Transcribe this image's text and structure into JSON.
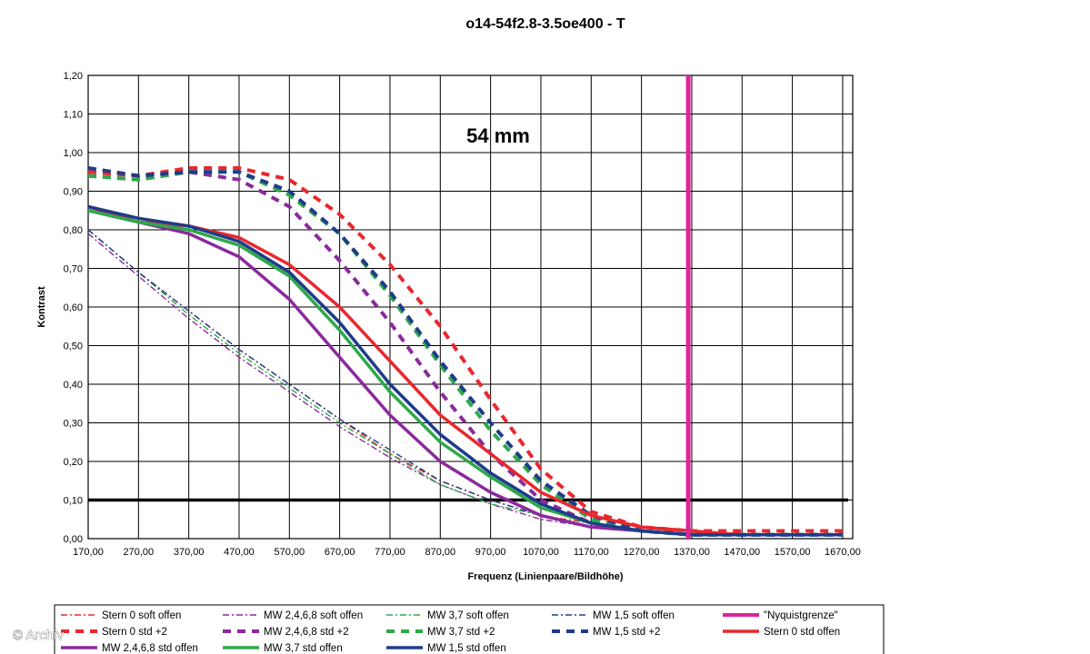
{
  "chart_data": {
    "type": "line",
    "title": "o14-54f2.8-3.5oe400 - T",
    "annotation": "54 mm",
    "xlabel": "Frequenz (Linienpaare/Bildhöhe)",
    "ylabel": "Kontrast",
    "xlim": [
      170,
      1690
    ],
    "ylim": [
      0,
      1.2
    ],
    "x_ticks": [
      "170,00",
      "270,00",
      "370,00",
      "470,00",
      "570,00",
      "670,00",
      "770,00",
      "870,00",
      "970,00",
      "1070,00",
      "1170,00",
      "1270,00",
      "1370,00",
      "1470,00",
      "1570,00",
      "1670,00"
    ],
    "y_ticks": [
      "0,00",
      "0,10",
      "0,20",
      "0,30",
      "0,40",
      "0,50",
      "0,60",
      "0,70",
      "0,80",
      "0,90",
      "1,00",
      "1,10",
      "1,20"
    ],
    "grid": true,
    "reference_lines": [
      {
        "orientation": "horizontal",
        "value": 0.1,
        "color": "#000000"
      }
    ],
    "legend_position": "bottom",
    "series": [
      {
        "name": "Stern 0 soft offen",
        "color": "#e8282e",
        "style": "dashdot",
        "x": [
          170,
          270,
          370,
          470,
          570,
          670,
          770,
          870,
          970,
          1070,
          1170,
          1270,
          1370,
          1470,
          1570,
          1670
        ],
        "y": [
          0.8,
          0.69,
          0.59,
          0.49,
          0.4,
          0.31,
          0.22,
          0.15,
          0.1,
          0.06,
          0.04,
          0.02,
          0.02,
          0.01,
          0.01,
          0.01
        ]
      },
      {
        "name": "MW 2,4,6,8 soft offen",
        "color": "#8b2a9c",
        "style": "dashdot",
        "x": [
          170,
          270,
          370,
          470,
          570,
          670,
          770,
          870,
          970,
          1070,
          1170,
          1270,
          1370,
          1470,
          1570,
          1670
        ],
        "y": [
          0.79,
          0.68,
          0.57,
          0.47,
          0.38,
          0.29,
          0.21,
          0.14,
          0.09,
          0.05,
          0.03,
          0.02,
          0.01,
          0.01,
          0.01,
          0.01
        ]
      },
      {
        "name": "MW 3,7 soft offen",
        "color": "#2ea84a",
        "style": "dashdot",
        "x": [
          170,
          270,
          370,
          470,
          570,
          670,
          770,
          870,
          970,
          1070,
          1170,
          1270,
          1370,
          1470,
          1570,
          1670
        ],
        "y": [
          0.8,
          0.69,
          0.58,
          0.48,
          0.39,
          0.3,
          0.22,
          0.14,
          0.09,
          0.06,
          0.03,
          0.02,
          0.01,
          0.01,
          0.01,
          0.01
        ]
      },
      {
        "name": "MW 1,5 soft offen",
        "color": "#1f3b8a",
        "style": "dashdot",
        "x": [
          170,
          270,
          370,
          470,
          570,
          670,
          770,
          870,
          970,
          1070,
          1170,
          1270,
          1370,
          1470,
          1570,
          1670
        ],
        "y": [
          0.8,
          0.69,
          0.59,
          0.49,
          0.4,
          0.31,
          0.23,
          0.15,
          0.1,
          0.06,
          0.03,
          0.02,
          0.01,
          0.01,
          0.01,
          0.01
        ]
      },
      {
        "name": "\"Nyquistgrenze\"",
        "color": "#e0239a",
        "style": "vertical",
        "x": [
          1363,
          1363
        ],
        "y": [
          0,
          1.2
        ]
      },
      {
        "name": "Stern 0 std +2",
        "color": "#e8282e",
        "style": "dashed",
        "x": [
          170,
          270,
          370,
          470,
          570,
          670,
          770,
          870,
          970,
          1070,
          1170,
          1270,
          1370,
          1470,
          1570,
          1670
        ],
        "y": [
          0.95,
          0.94,
          0.96,
          0.96,
          0.93,
          0.84,
          0.71,
          0.55,
          0.36,
          0.18,
          0.07,
          0.03,
          0.02,
          0.02,
          0.02,
          0.02
        ]
      },
      {
        "name": "MW 2,4,6,8 std +2",
        "color": "#8b2a9c",
        "style": "dashed",
        "x": [
          170,
          270,
          370,
          470,
          570,
          670,
          770,
          870,
          970,
          1070,
          1170,
          1270,
          1370,
          1470,
          1570,
          1670
        ],
        "y": [
          0.94,
          0.93,
          0.95,
          0.93,
          0.86,
          0.72,
          0.56,
          0.38,
          0.22,
          0.1,
          0.04,
          0.02,
          0.01,
          0.01,
          0.01,
          0.01
        ]
      },
      {
        "name": "MW 3,7 std +2",
        "color": "#2ea84a",
        "style": "dashed",
        "x": [
          170,
          270,
          370,
          470,
          570,
          670,
          770,
          870,
          970,
          1070,
          1170,
          1270,
          1370,
          1470,
          1570,
          1670
        ],
        "y": [
          0.94,
          0.93,
          0.95,
          0.95,
          0.89,
          0.79,
          0.63,
          0.45,
          0.28,
          0.14,
          0.05,
          0.02,
          0.01,
          0.01,
          0.01,
          0.01
        ]
      },
      {
        "name": "MW 1,5 std +2",
        "color": "#1f3b8a",
        "style": "dashed",
        "x": [
          170,
          270,
          370,
          470,
          570,
          670,
          770,
          870,
          970,
          1070,
          1170,
          1270,
          1370,
          1470,
          1570,
          1670
        ],
        "y": [
          0.96,
          0.94,
          0.95,
          0.95,
          0.9,
          0.79,
          0.64,
          0.46,
          0.3,
          0.15,
          0.06,
          0.02,
          0.01,
          0.01,
          0.01,
          0.01
        ]
      },
      {
        "name": "Stern 0 std offen",
        "color": "#e8282e",
        "style": "solid",
        "x": [
          170,
          270,
          370,
          470,
          570,
          670,
          770,
          870,
          970,
          1070,
          1170,
          1270,
          1370,
          1470,
          1570,
          1670
        ],
        "y": [
          0.86,
          0.82,
          0.81,
          0.78,
          0.71,
          0.6,
          0.46,
          0.32,
          0.22,
          0.12,
          0.06,
          0.03,
          0.02,
          0.01,
          0.01,
          0.01
        ]
      },
      {
        "name": "MW 2,4,6,8 std offen",
        "color": "#8b2a9c",
        "style": "solid",
        "x": [
          170,
          270,
          370,
          470,
          570,
          670,
          770,
          870,
          970,
          1070,
          1170,
          1270,
          1370,
          1470,
          1570,
          1670
        ],
        "y": [
          0.85,
          0.82,
          0.79,
          0.73,
          0.62,
          0.47,
          0.32,
          0.2,
          0.12,
          0.06,
          0.03,
          0.02,
          0.01,
          0.01,
          0.01,
          0.01
        ]
      },
      {
        "name": "MW 3,7 std offen",
        "color": "#2ea84a",
        "style": "solid",
        "x": [
          170,
          270,
          370,
          470,
          570,
          670,
          770,
          870,
          970,
          1070,
          1170,
          1270,
          1370,
          1470,
          1570,
          1670
        ],
        "y": [
          0.85,
          0.82,
          0.8,
          0.76,
          0.68,
          0.54,
          0.38,
          0.25,
          0.16,
          0.08,
          0.04,
          0.02,
          0.01,
          0.01,
          0.01,
          0.01
        ]
      },
      {
        "name": "MW 1,5 std offen",
        "color": "#1f3b8a",
        "style": "solid",
        "x": [
          170,
          270,
          370,
          470,
          570,
          670,
          770,
          870,
          970,
          1070,
          1170,
          1270,
          1370,
          1470,
          1570,
          1670
        ],
        "y": [
          0.86,
          0.83,
          0.81,
          0.77,
          0.69,
          0.56,
          0.4,
          0.27,
          0.17,
          0.09,
          0.04,
          0.02,
          0.01,
          0.01,
          0.01,
          0.01
        ]
      }
    ]
  },
  "watermark": "© Archiv"
}
